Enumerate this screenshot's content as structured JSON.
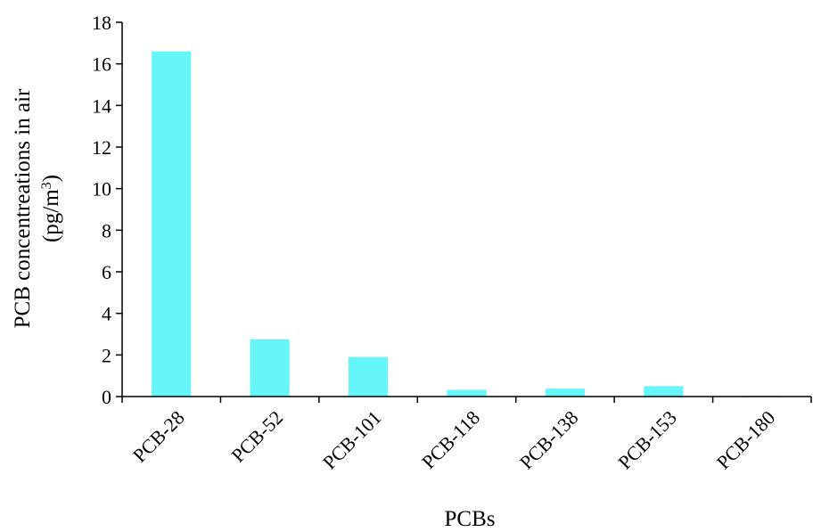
{
  "chart_data": {
    "type": "bar",
    "categories": [
      "PCB-28",
      "PCB-52",
      "PCB-101",
      "PCB-118",
      "PCB-138",
      "PCB-153",
      "PCB-180"
    ],
    "values": [
      16.6,
      2.75,
      1.9,
      0.32,
      0.38,
      0.5,
      0.04
    ],
    "xlabel": "PCBs",
    "ylabel_line1": "PCB concentreations in air",
    "ylabel_line2_prefix": "(pg/m",
    "ylabel_line2_sup": "3",
    "ylabel_line2_suffix": ")",
    "ylim": [
      0,
      18
    ],
    "yticks": [
      0,
      2,
      4,
      6,
      8,
      10,
      12,
      14,
      16,
      18
    ],
    "grid": false,
    "legend": "none",
    "bar_color": "#66F5F9"
  }
}
